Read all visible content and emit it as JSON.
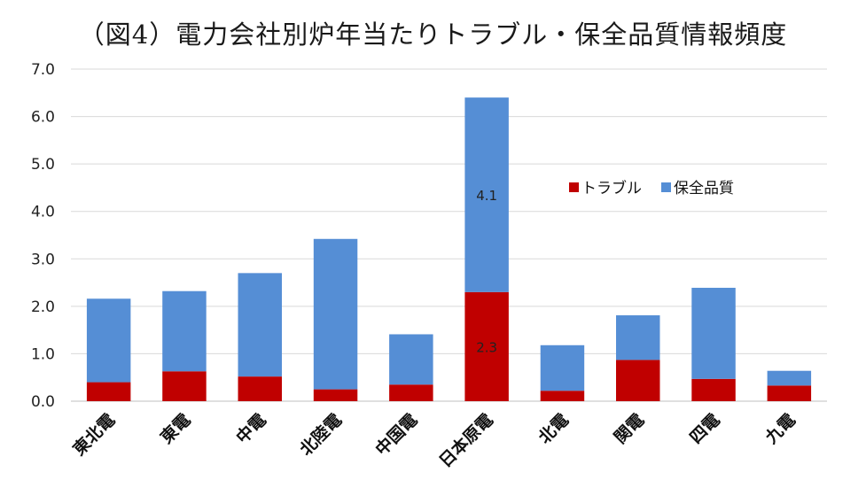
{
  "chart_data": {
    "type": "bar",
    "stacked": true,
    "title": "（図4）電力会社別炉年当たりトラブル・保全品質情報頻度",
    "categories": [
      "東北電",
      "東電",
      "中電",
      "北陸電",
      "中国電",
      "日本原電",
      "北電",
      "関電",
      "四電",
      "九電"
    ],
    "series": [
      {
        "name": "トラブル",
        "color": "#c00000",
        "values": [
          0.4,
          0.63,
          0.52,
          0.25,
          0.35,
          2.3,
          0.22,
          0.87,
          0.47,
          0.33
        ]
      },
      {
        "name": "保全品質",
        "color": "#558ed5",
        "values": [
          1.76,
          1.69,
          2.18,
          3.17,
          1.06,
          4.1,
          0.96,
          0.94,
          1.92,
          0.31
        ]
      }
    ],
    "data_labels": [
      {
        "series": 0,
        "category": 5,
        "text": "2.3"
      },
      {
        "series": 1,
        "category": 5,
        "text": "4.1"
      }
    ],
    "yticks": [
      "0.0",
      "1.0",
      "2.0",
      "3.0",
      "4.0",
      "5.0",
      "6.0",
      "7.0"
    ],
    "ylim": [
      0,
      7
    ],
    "grid": true,
    "legend": "inside-right"
  }
}
